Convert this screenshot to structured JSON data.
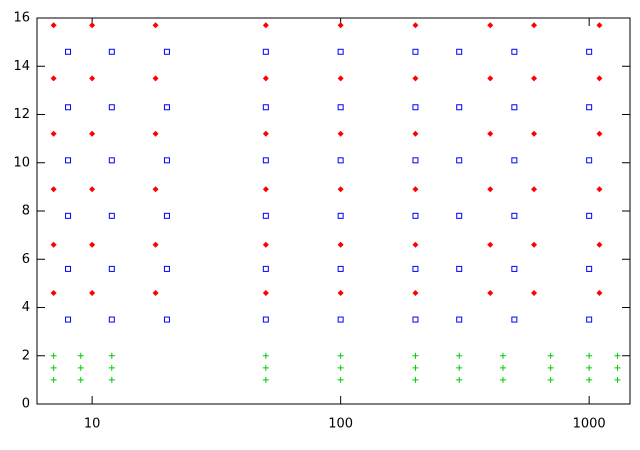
{
  "chart_data": {
    "type": "scatter",
    "xscale": "log",
    "xlim": [
      6,
      1460
    ],
    "xticks": [
      10,
      100,
      1000
    ],
    "ylim": [
      0,
      16
    ],
    "yticks": [
      0,
      2,
      4,
      6,
      8,
      10,
      12,
      14,
      16
    ],
    "grid": false,
    "series": [
      {
        "color": "#ff0000",
        "marker": "diamond",
        "x": [
          7,
          7,
          7,
          7,
          7,
          7,
          10,
          10,
          10,
          10,
          10,
          10,
          18,
          18,
          18,
          18,
          18,
          18,
          50,
          50,
          50,
          50,
          50,
          50,
          100,
          100,
          100,
          100,
          100,
          100,
          200,
          200,
          200,
          200,
          200,
          200,
          400,
          400,
          400,
          400,
          400,
          400,
          600,
          600,
          600,
          600,
          600,
          600,
          1100,
          1100,
          1100,
          1100,
          1100,
          1100
        ],
        "values": [
          4.6,
          6.6,
          8.9,
          11.2,
          13.5,
          15.7,
          4.6,
          6.6,
          8.9,
          11.2,
          13.5,
          15.7,
          4.6,
          6.6,
          8.9,
          11.2,
          13.5,
          15.7,
          4.6,
          6.6,
          8.9,
          11.2,
          13.5,
          15.7,
          4.6,
          6.6,
          8.9,
          11.2,
          13.5,
          15.7,
          4.6,
          6.6,
          8.9,
          11.2,
          13.5,
          15.7,
          4.6,
          6.6,
          8.9,
          11.2,
          13.5,
          15.7,
          4.6,
          6.6,
          8.9,
          11.2,
          13.5,
          15.7,
          4.6,
          6.6,
          8.9,
          11.2,
          13.5,
          15.7
        ]
      },
      {
        "color": "#0000ff",
        "marker": "square",
        "x": [
          8,
          8,
          8,
          8,
          8,
          8,
          12,
          12,
          12,
          12,
          12,
          12,
          20,
          20,
          20,
          20,
          20,
          20,
          50,
          50,
          50,
          50,
          50,
          50,
          100,
          100,
          100,
          100,
          100,
          100,
          200,
          200,
          200,
          200,
          200,
          200,
          300,
          300,
          300,
          300,
          300,
          300,
          500,
          500,
          500,
          500,
          500,
          500,
          1000,
          1000,
          1000,
          1000,
          1000,
          1000
        ],
        "values": [
          3.5,
          5.6,
          7.8,
          10.1,
          12.3,
          14.6,
          3.5,
          5.6,
          7.8,
          10.1,
          12.3,
          14.6,
          3.5,
          5.6,
          7.8,
          10.1,
          12.3,
          14.6,
          3.5,
          5.6,
          7.8,
          10.1,
          12.3,
          14.6,
          3.5,
          5.6,
          7.8,
          10.1,
          12.3,
          14.6,
          3.5,
          5.6,
          7.8,
          10.1,
          12.3,
          14.6,
          3.5,
          5.6,
          7.8,
          10.1,
          12.3,
          14.6,
          3.5,
          5.6,
          7.8,
          10.1,
          12.3,
          14.6,
          3.5,
          5.6,
          7.8,
          10.1,
          12.3,
          14.6
        ]
      },
      {
        "color": "#00cc00",
        "marker": "plus",
        "x": [
          7,
          7,
          7,
          9,
          9,
          9,
          12,
          12,
          12,
          50,
          50,
          50,
          100,
          100,
          100,
          200,
          200,
          200,
          300,
          300,
          300,
          450,
          450,
          450,
          700,
          700,
          700,
          1000,
          1000,
          1000,
          1300,
          1300,
          1300
        ],
        "values": [
          1.0,
          1.5,
          2.0,
          1.0,
          1.5,
          2.0,
          1.0,
          1.5,
          2.0,
          1.0,
          1.5,
          2.0,
          1.0,
          1.5,
          2.0,
          1.0,
          1.5,
          2.0,
          1.0,
          1.5,
          2.0,
          1.0,
          1.5,
          2.0,
          1.0,
          1.5,
          2.0,
          1.0,
          1.5,
          2.0,
          1.0,
          1.5,
          2.0
        ]
      }
    ]
  }
}
